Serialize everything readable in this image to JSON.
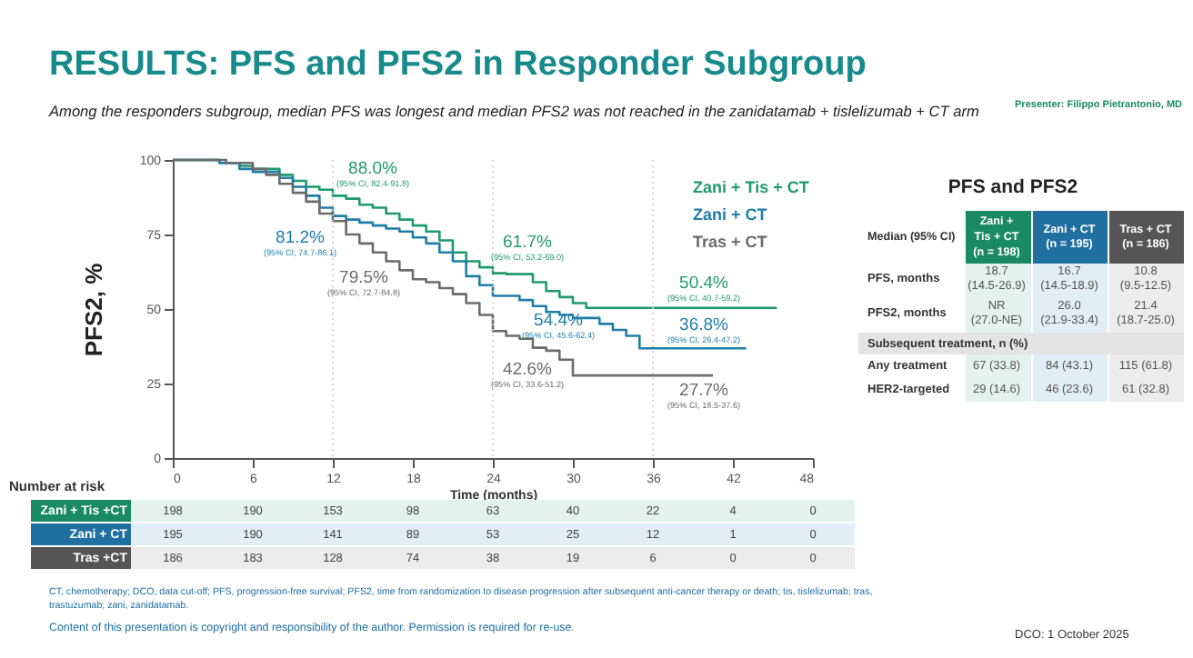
{
  "chart_data": {
    "type": "step",
    "title": "RESULTS: PFS and PFS2 in Responder Subgroup",
    "subtitle": "Among the responders subgroup, median PFS was longest and median PFS2 was not reached in the zanidatamab + tislelizumab + CT arm",
    "xlabel": "Time (months)",
    "ylabel": "PFS2, %",
    "xlim": [
      0,
      48
    ],
    "xticks": [
      0,
      6,
      12,
      18,
      24,
      30,
      36,
      42,
      48
    ],
    "ylim": [
      0,
      100
    ],
    "yticks": [
      0,
      25,
      50,
      75,
      100
    ],
    "grid": false,
    "legend": "top right",
    "marker": "none",
    "line_style": "solid",
    "series": [
      {
        "name": "Zani + Tis + CT",
        "color": "#1f9a6e",
        "x": [
          0,
          3.5,
          5,
          6,
          8,
          9,
          10,
          11,
          12,
          13,
          14,
          15,
          16,
          17,
          18,
          19,
          20,
          21,
          22,
          23,
          24,
          25,
          27,
          28,
          29,
          30,
          31,
          45.3
        ],
        "values": [
          100,
          99,
          98,
          97,
          95,
          93,
          91,
          90,
          88,
          87,
          85,
          84,
          82,
          80,
          78,
          76,
          73,
          69,
          66,
          64,
          62,
          61.7,
          59,
          56,
          54,
          52,
          50.4,
          50.4
        ]
      },
      {
        "name": "Zani + CT",
        "color": "#1f7ea8",
        "x": [
          0,
          3.5,
          5,
          6,
          8,
          9,
          10,
          11,
          12,
          13,
          14,
          15,
          16,
          17,
          18,
          19,
          20,
          21,
          22,
          23,
          24,
          25,
          26,
          27,
          28,
          29,
          30,
          32,
          33,
          34,
          35,
          43
        ],
        "values": [
          100,
          99,
          97,
          96,
          94,
          91,
          88,
          84,
          81.2,
          80,
          79,
          78,
          77,
          76,
          74,
          72,
          69,
          66,
          61,
          58,
          54.4,
          54.4,
          53,
          51,
          49,
          48,
          47,
          45,
          43,
          41,
          36.8,
          36.8
        ]
      },
      {
        "name": "Tras + CT",
        "color": "#6b6b6b",
        "x": [
          0,
          4,
          6,
          7,
          8,
          9,
          10,
          11,
          12,
          13,
          14,
          15,
          16,
          17,
          18,
          19,
          20,
          21,
          22,
          23,
          24,
          25,
          26,
          27,
          28,
          29,
          30,
          40.5
        ],
        "values": [
          100,
          99,
          97,
          95,
          92,
          89,
          86,
          82,
          79.5,
          75,
          72,
          69,
          66,
          63,
          60,
          59,
          57,
          55,
          52,
          48,
          42.6,
          41,
          40,
          37,
          36,
          33,
          27.7,
          27.7
        ]
      }
    ],
    "ref_lines": [
      {
        "axis": "x",
        "value": 12,
        "color": "#cccccc",
        "line_style": "dotted"
      },
      {
        "axis": "x",
        "value": 24,
        "color": "#cccccc",
        "line_style": "dotted"
      },
      {
        "axis": "x",
        "value": 36,
        "color": "#cccccc",
        "line_style": "dotted"
      }
    ],
    "annotations": [
      {
        "text": "88.0%\n(95% CI, 82.4-91.8)",
        "x": 12,
        "y": 88
      },
      {
        "text": "81.2%\n(95% CI, 74.7-86.1)",
        "x": 12,
        "y": 81.2
      },
      {
        "text": "79.5%\n(95% CI, 72.7-84.8)",
        "x": 12,
        "y": 79.5
      },
      {
        "text": "61.7%\n(95% CI, 53.2-69.0)",
        "x": 24,
        "y": 61.7
      },
      {
        "text": "54.4%\n(95% CI, 45.6-62.4)",
        "x": 24,
        "y": 54.4
      },
      {
        "text": "42.6%\n(95% CI, 33.6-51.2)",
        "x": 24,
        "y": 42.6
      },
      {
        "text": "50.4%\n(95% CI, 40.7-59.2)",
        "x": 36,
        "y": 50.4
      },
      {
        "text": "36.8%\n(95% CI, 26.4-47.2)",
        "x": 36,
        "y": 36.8
      },
      {
        "text": "27.7%\n(95% CI, 18.5-37.6)",
        "x": 36,
        "y": 27.7
      },
      "Number at risk",
      "Zani + Tis +CT",
      "Zani + CT",
      "Tras +CT",
      "198 190 153 98 63 40 22 4 0",
      "195 190 141 89 53 25 12 1 0",
      "186 183 128 74 38 19 6 0 0",
      "PFS and PFS2",
      "Median (95% CI)",
      "Zani +\nTis + CT\n(n = 198)",
      "Zani + CT\n(n = 195)",
      "Tras + CT\n(n = 186)",
      "PFS, months",
      "18.7\n(14.5-26.9)",
      "16.7\n(14.5-18.9)",
      "10.8\n(9.5-12.5)",
      "PFS2, months",
      "NR\n(27.0-NE)",
      "26.0\n(21.9-33.4)",
      "21.4\n(18.7-25.0)",
      "Subsequent treatment, n (%)",
      "Any treatment",
      "67 (33.8)",
      "84 (43.1)",
      "115 (61.8)",
      "HER2-targeted",
      "29 (14.6)",
      "46 (23.6)",
      "61 (32.8)",
      "CT, chemotherapy; DCO, data cut-off; PFS, progression-free survival; PFS2, time from randomization to disease progression after subsequent anti-cancer therapy or death; tis, tislelizumab; tras, trastuzumab; zani, zanidatamab.",
      "Content of this presentation is copyright and responsibility of the author. Permission is required for re-use.",
      "DCO: 1 October 2025",
      "Presenter: Filippo Pietrantonio, MD"
    ]
  }
}
